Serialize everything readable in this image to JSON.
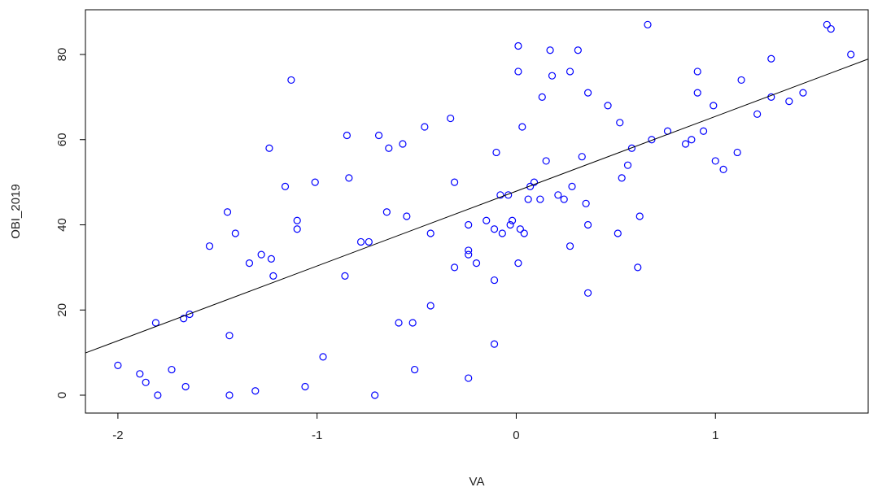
{
  "chart_data": {
    "type": "scatter",
    "xlabel": "VA",
    "ylabel": "OBI_2019",
    "color": "#0000ff",
    "x": [
      -2.0,
      -1.89,
      -1.86,
      -1.81,
      -1.8,
      -1.73,
      -1.67,
      -1.66,
      -1.64,
      -1.54,
      -1.45,
      -1.44,
      -1.44,
      -1.41,
      -1.34,
      -1.31,
      -1.28,
      -1.24,
      -1.23,
      -1.22,
      -1.16,
      -1.13,
      -1.1,
      -1.1,
      -1.06,
      -1.01,
      -0.97,
      -0.86,
      -0.85,
      -0.84,
      -0.78,
      -0.74,
      -0.71,
      -0.69,
      -0.65,
      -0.64,
      -0.59,
      -0.57,
      -0.55,
      -0.52,
      -0.51,
      -0.46,
      -0.43,
      -0.43,
      -0.33,
      -0.31,
      -0.31,
      -0.24,
      -0.24,
      -0.24,
      -0.24,
      -0.2,
      -0.15,
      -0.11,
      -0.11,
      -0.11,
      -0.1,
      -0.08,
      -0.07,
      -0.04,
      -0.03,
      -0.02,
      0.01,
      0.01,
      0.01,
      0.02,
      0.03,
      0.04,
      0.06,
      0.07,
      0.09,
      0.12,
      0.13,
      0.15,
      0.17,
      0.18,
      0.21,
      0.24,
      0.27,
      0.27,
      0.28,
      0.31,
      0.33,
      0.35,
      0.36,
      0.36,
      0.36,
      0.46,
      0.51,
      0.52,
      0.53,
      0.56,
      0.58,
      0.61,
      0.62,
      0.66,
      0.68,
      0.76,
      0.85,
      0.88,
      0.91,
      0.91,
      0.94,
      0.99,
      1.0,
      1.04,
      1.11,
      1.13,
      1.21,
      1.28,
      1.28,
      1.37,
      1.44,
      1.56,
      1.58,
      1.68
    ],
    "values": [
      7,
      5,
      3,
      17,
      0,
      6,
      18,
      2,
      19,
      35,
      43,
      14,
      0,
      38,
      31,
      1,
      33,
      58,
      32,
      28,
      49,
      74,
      41,
      39,
      2,
      50,
      9,
      28,
      61,
      51,
      36,
      36,
      0,
      61,
      43,
      58,
      17,
      59,
      42,
      17,
      6,
      63,
      21,
      38,
      65,
      50,
      30,
      34,
      33,
      40,
      4,
      31,
      41,
      27,
      39,
      12,
      57,
      47,
      38,
      47,
      40,
      41,
      31,
      82,
      76,
      39,
      63,
      38,
      46,
      49,
      50,
      46,
      70,
      55,
      81,
      75,
      47,
      46,
      35,
      76,
      49,
      81,
      56,
      45,
      24,
      71,
      40,
      68,
      38,
      64,
      51,
      54,
      58,
      30,
      42,
      87,
      60,
      62,
      59,
      60,
      76,
      71,
      62,
      68,
      55,
      53,
      57,
      74,
      66,
      70,
      79,
      69,
      71,
      87,
      86,
      80
    ],
    "regression_line": {
      "intercept": 47.9,
      "slope": 17.56
    },
    "xlim": [
      -2.163,
      1.767
    ],
    "ylim": [
      -4.2,
      90.5
    ],
    "xticks": [
      -2,
      -1,
      0,
      1
    ],
    "yticks": [
      0,
      20,
      40,
      60,
      80
    ]
  }
}
